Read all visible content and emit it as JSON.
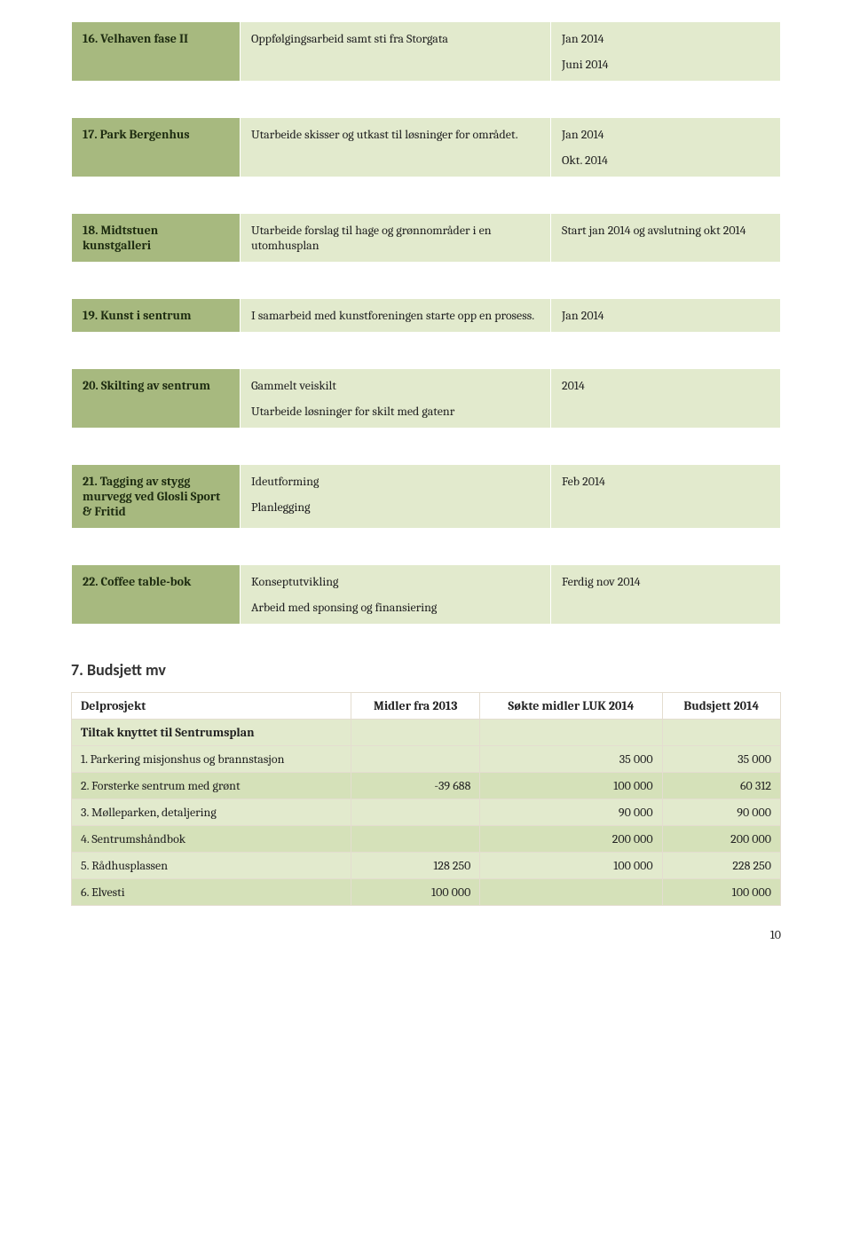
{
  "sections": [
    {
      "id": "16",
      "title": "16. Velhaven fase II",
      "desc": "Oppfølgingsarbeid samt sti fra Storgata",
      "dates": [
        "Jan 2014",
        "Juni 2014"
      ]
    },
    {
      "id": "17",
      "title": "17. Park Bergenhus",
      "desc": "Utarbeide skisser og utkast til løsninger for området.",
      "dates": [
        "Jan 2014",
        "Okt. 2014"
      ]
    },
    {
      "id": "18",
      "title": "18. Midtstuen kunstgalleri",
      "desc": "Utarbeide forslag til hage og grønnområder i en utomhusplan",
      "dates": [
        "Start jan 2014 og avslutning okt 2014"
      ]
    },
    {
      "id": "19",
      "title": "19. Kunst i sentrum",
      "desc": "I samarbeid med kunstforeningen starte opp en prosess.",
      "dates": [
        "Jan 2014"
      ]
    },
    {
      "id": "20",
      "title": "20. Skilting av sentrum",
      "desc": "Gammelt veiskilt\nUtarbeide løsninger for skilt med gatenr",
      "dates": [
        "2014"
      ]
    },
    {
      "id": "21",
      "title": "21. Tagging av stygg murvegg ved Glosli Sport & Fritid",
      "desc": "Ideutforming\nPlanlegging",
      "dates": [
        "Feb 2014"
      ]
    },
    {
      "id": "22",
      "title": "22. Coffee table-bok",
      "desc": "Konseptutvikling\nArbeid med sponsing og finansiering",
      "dates": [
        "Ferdig nov 2014"
      ]
    }
  ],
  "budget": {
    "heading": "7. Budsjett  mv",
    "cols": [
      "Delprosjekt",
      "Midler fra 2013",
      "Søkte midler LUK 2014",
      "Budsjett 2014"
    ],
    "group_label": "Tiltak knyttet til Sentrumsplan",
    "rows": [
      {
        "label": "1. Parkering misjonshus og brannstasjon",
        "c1": "",
        "c2": "35 000",
        "c3": "35 000"
      },
      {
        "label": "2. Forsterke sentrum med grønt",
        "c1": "-39 688",
        "c2": "100 000",
        "c3": "60 312"
      },
      {
        "label": "3. Mølleparken, detaljering",
        "c1": "",
        "c2": "90 000",
        "c3": "90 000"
      },
      {
        "label": "4. Sentrumshåndbok",
        "c1": "",
        "c2": "200 000",
        "c3": "200 000"
      },
      {
        "label": "5. Rådhusplassen",
        "c1": "128 250",
        "c2": "100 000",
        "c3": "228 250"
      },
      {
        "label": "6. Elvesti",
        "c1": "100 000",
        "c2": "",
        "c3": "100 000"
      }
    ]
  },
  "page_number": "10",
  "colors": {
    "header_bg": "#a7b97f",
    "cell_bg": "#e2eacd",
    "alt_bg": "#d5e1b9",
    "border": "#e4ddd0"
  }
}
